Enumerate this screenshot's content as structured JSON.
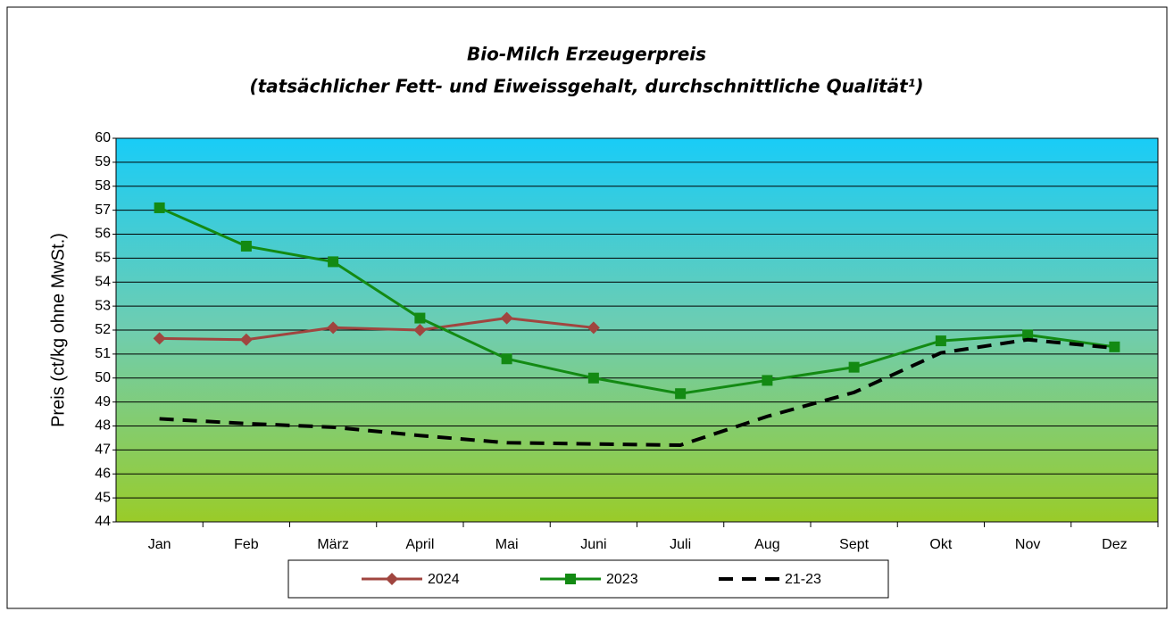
{
  "chart_data": {
    "type": "line",
    "title": "Bio-Milch Erzeugerpreis",
    "subtitle": "(tatsächlicher Fett- und Eiweissgehalt, durchschnittliche Qualität¹)",
    "y_label": "Preis (ct/kg ohne MwSt.)",
    "categories": [
      "Jan",
      "Feb",
      "März",
      "April",
      "Mai",
      "Juni",
      "Juli",
      "Aug",
      "Sept",
      "Okt",
      "Nov",
      "Dez"
    ],
    "series": [
      {
        "name": "2024",
        "color": "#a0453f",
        "marker": "diamond",
        "dash": false,
        "values": [
          51.65,
          51.6,
          52.1,
          52.0,
          52.5,
          52.1,
          null,
          null,
          null,
          null,
          null,
          null
        ]
      },
      {
        "name": "2023",
        "color": "#138a13",
        "marker": "square",
        "dash": false,
        "values": [
          57.1,
          55.5,
          54.85,
          52.5,
          50.8,
          50.0,
          49.35,
          49.9,
          50.45,
          51.55,
          51.8,
          51.3
        ]
      },
      {
        "name": "21-23",
        "color": "#000000",
        "marker": null,
        "dash": true,
        "values": [
          48.3,
          48.1,
          47.95,
          47.6,
          47.3,
          47.25,
          47.2,
          48.4,
          49.4,
          51.05,
          51.6,
          51.25
        ]
      }
    ],
    "ylim": [
      44,
      60
    ],
    "yticks": [
      44,
      45,
      46,
      47,
      48,
      49,
      50,
      51,
      52,
      53,
      54,
      55,
      56,
      57,
      58,
      59,
      60
    ],
    "grid": true,
    "legend": "bottom"
  }
}
